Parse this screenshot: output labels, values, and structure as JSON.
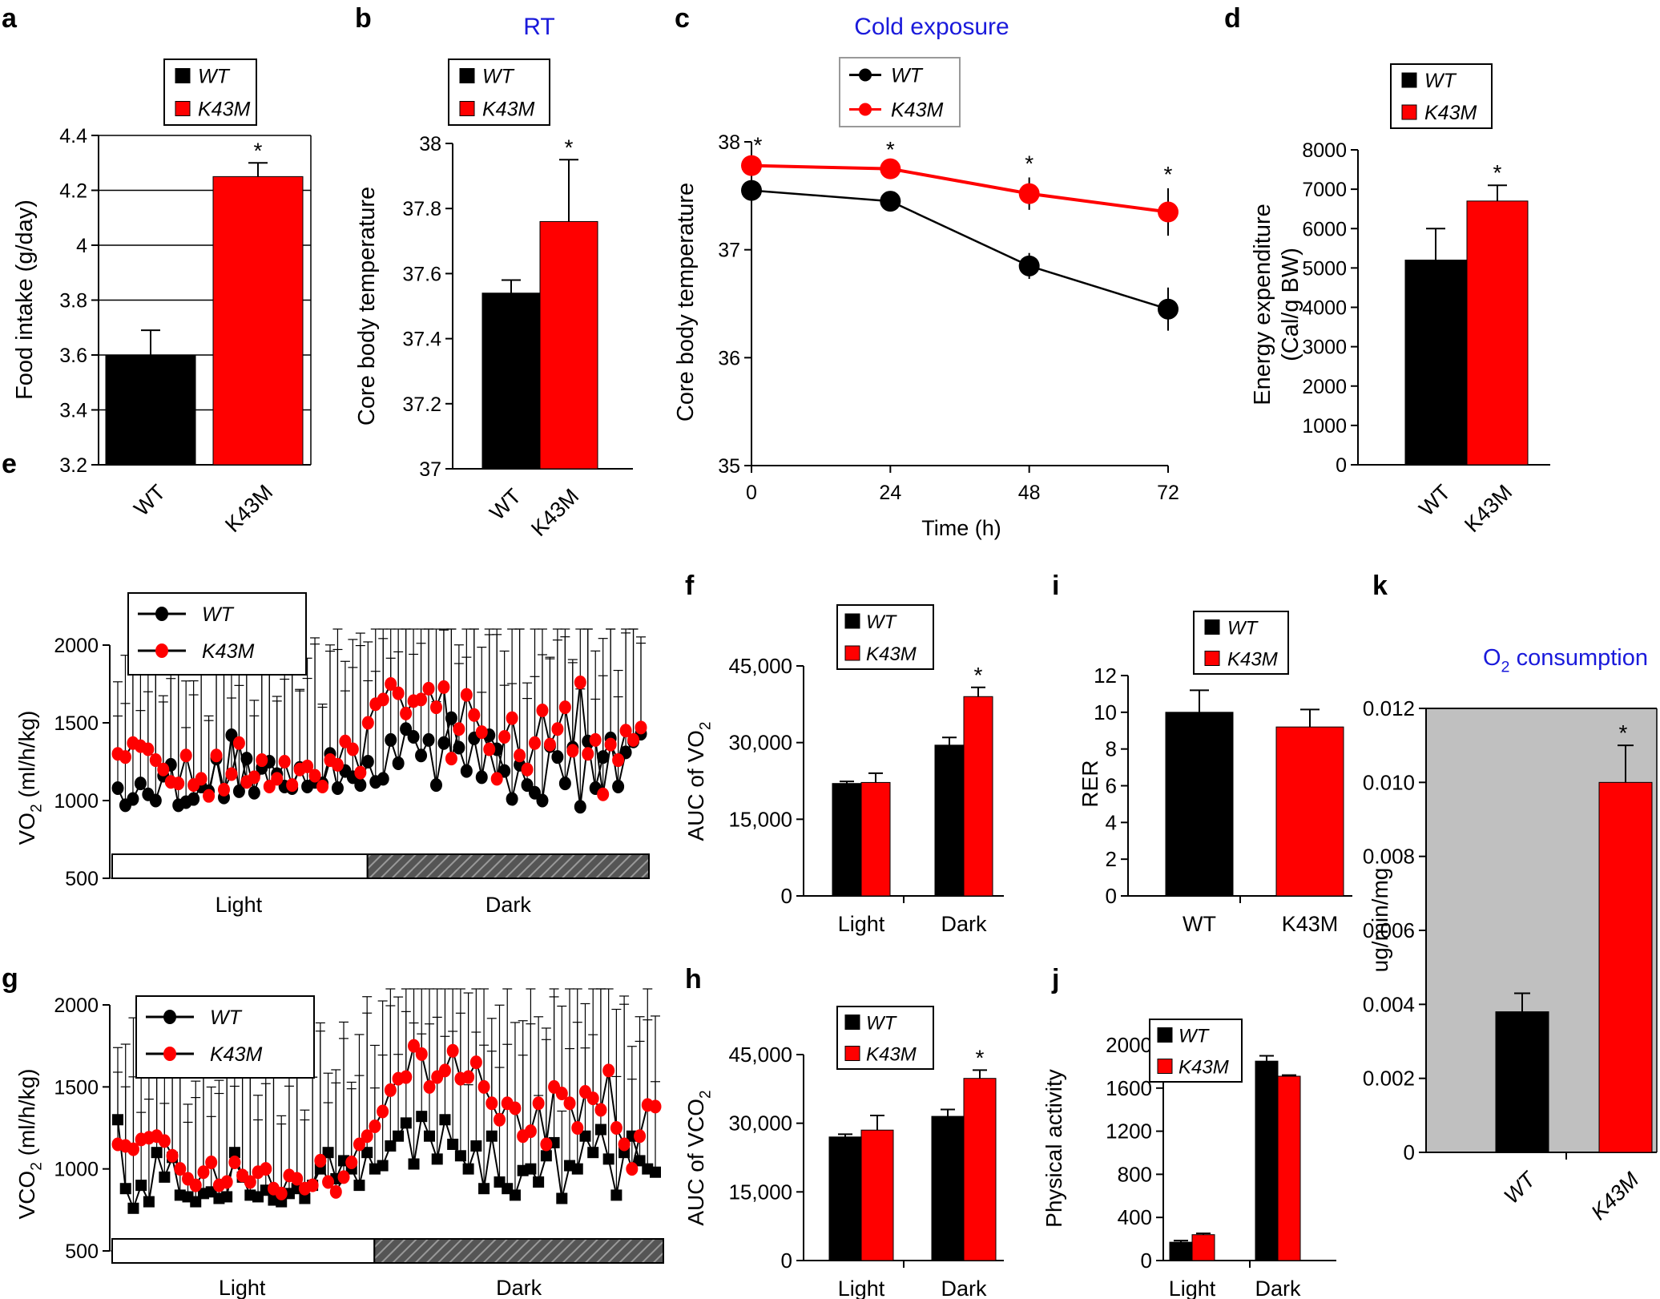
{
  "colors": {
    "wt": "#000000",
    "k43m": "#ff0000",
    "title": "#1a1adb",
    "k_bg": "#c0c0c0"
  },
  "chart_data": [
    {
      "id": "a",
      "type": "bar",
      "panel_label": "a",
      "title": "",
      "categories": [
        "WT",
        "K43M"
      ],
      "values": [
        3.6,
        4.25
      ],
      "errors": [
        0.09,
        0.05
      ],
      "significance": [
        "",
        "*"
      ],
      "ylabel": "Food intake (g/day)",
      "xlabel": "",
      "ylim": [
        3.2,
        4.4
      ],
      "yticks": [
        "3.2",
        "3.4",
        "3.6",
        "3.8",
        "4",
        "4.2",
        "4.4"
      ],
      "legend": [
        "WT",
        "K43M"
      ],
      "legend_position": "top",
      "grid": true
    },
    {
      "id": "b",
      "type": "bar",
      "panel_label": "b",
      "title": "RT",
      "categories": [
        "WT",
        "K43M"
      ],
      "values": [
        37.54,
        37.76
      ],
      "errors": [
        0.04,
        0.19
      ],
      "significance": [
        "",
        "*"
      ],
      "ylabel": "Core body temperature",
      "xlabel": "",
      "ylim": [
        37,
        38
      ],
      "yticks": [
        "37",
        "37.2",
        "37.4",
        "37.6",
        "37.8",
        "38"
      ],
      "legend": [
        "WT",
        "K43M"
      ],
      "legend_position": "top",
      "grid": false
    },
    {
      "id": "c",
      "type": "line",
      "panel_label": "c",
      "title": "Cold exposure",
      "x": [
        0,
        24,
        48,
        72
      ],
      "xticks": [
        "0",
        "24",
        "48",
        "72"
      ],
      "series": [
        {
          "name": "WT",
          "values": [
            37.55,
            37.45,
            36.85,
            36.45
          ],
          "errors": [
            0.18,
            0.08,
            0.12,
            0.2
          ]
        },
        {
          "name": "K43M",
          "values": [
            37.78,
            37.75,
            37.52,
            37.35
          ],
          "errors": [
            0.06,
            0.05,
            0.15,
            0.22
          ]
        }
      ],
      "significance": [
        "*",
        "*",
        "*",
        "*"
      ],
      "ylabel": "Core body temperature",
      "xlabel": "Time (h)",
      "ylim": [
        35,
        38
      ],
      "yticks": [
        "35",
        "36",
        "37",
        "38"
      ],
      "legend_position": "top"
    },
    {
      "id": "d",
      "type": "bar",
      "panel_label": "d",
      "title": "",
      "categories": [
        "WT",
        "K43M"
      ],
      "values": [
        5200,
        6700
      ],
      "errors": [
        800,
        400
      ],
      "significance": [
        "",
        "*"
      ],
      "ylabel": "Energy expenditure",
      "ylabel2": "(Cal/g BW)",
      "xlabel": "",
      "ylim": [
        0,
        8000
      ],
      "yticks": [
        "0",
        "1000",
        "2000",
        "3000",
        "4000",
        "5000",
        "6000",
        "7000",
        "8000"
      ],
      "legend": [
        "WT",
        "K43M"
      ],
      "legend_position": "top",
      "grid": false
    },
    {
      "id": "e",
      "type": "line",
      "panel_label": "e",
      "title": "",
      "ylabel_main": "VO",
      "ylabel_sub": "2",
      "ylabel_rest": " (ml/h/kg)",
      "ylim": [
        500,
        2000
      ],
      "yticks": [
        "500",
        "1000",
        "1500",
        "2000"
      ],
      "series": [
        {
          "name": "WT",
          "marker": "circle",
          "values": [
            1080,
            970,
            1010,
            1110,
            1040,
            1000,
            1160,
            1230,
            970,
            990,
            1010,
            1090,
            1060,
            1270,
            1020,
            1420,
            1060,
            1270,
            1050,
            1210,
            1250,
            1170,
            1090,
            1080,
            1210,
            1090,
            1120,
            1110,
            1300,
            1080,
            1190,
            1150,
            1100,
            1250,
            1120,
            1140,
            1390,
            1240,
            1460,
            1410,
            1290,
            1390,
            1100,
            1370,
            1530,
            1340,
            1190,
            1400,
            1150,
            1420,
            1330,
            1190,
            1010,
            1230,
            1100,
            1050,
            1000,
            1350,
            1280,
            1110,
            1340,
            960,
            1380,
            1080,
            1280,
            1400,
            1090,
            1310,
            1380,
            1430
          ]
        },
        {
          "name": "K43M",
          "marker": "circle",
          "values": [
            1300,
            1280,
            1370,
            1350,
            1330,
            1260,
            1200,
            1120,
            1110,
            1290,
            1100,
            1140,
            1030,
            1290,
            1070,
            1170,
            1370,
            1120,
            1150,
            1260,
            1090,
            1140,
            1250,
            1100,
            1200,
            1220,
            1160,
            1090,
            1260,
            1230,
            1380,
            1330,
            1180,
            1500,
            1620,
            1650,
            1750,
            1690,
            1560,
            1640,
            1650,
            1720,
            1600,
            1730,
            1270,
            1460,
            1680,
            1550,
            1440,
            1330,
            1140,
            1410,
            1530,
            1290,
            1200,
            1370,
            1580,
            1360,
            1460,
            1600,
            1320,
            1760,
            1300,
            1390,
            1040,
            1360,
            1260,
            1450,
            1390,
            1470
          ]
        }
      ],
      "light_dark_labels": [
        "Light",
        "Dark"
      ],
      "legend_position": "top-left"
    },
    {
      "id": "f",
      "type": "bar",
      "panel_label": "f",
      "title": "",
      "categories": [
        "Light",
        "Dark"
      ],
      "series": [
        {
          "name": "WT",
          "values": [
            22000,
            29500
          ],
          "errors": [
            400,
            1500
          ]
        },
        {
          "name": "K43M",
          "values": [
            22200,
            39000
          ],
          "errors": [
            1800,
            1800
          ]
        }
      ],
      "significance": [
        "",
        "*"
      ],
      "ylabel_main": "AUC of VO",
      "ylabel_sub": "2",
      "ylim": [
        0,
        45000
      ],
      "yticks": [
        "0",
        "15,000",
        "30,000",
        "45,000"
      ],
      "legend_position": "top"
    },
    {
      "id": "g",
      "type": "line",
      "panel_label": "g",
      "title": "",
      "ylabel_main": "VCO",
      "ylabel_sub": "2",
      "ylabel_rest": " (ml/h/kg)",
      "ylim": [
        500,
        2000
      ],
      "yticks": [
        "500",
        "1000",
        "1500",
        "2000"
      ],
      "series": [
        {
          "name": "WT",
          "marker": "square",
          "values": [
            1300,
            880,
            760,
            900,
            800,
            1100,
            950,
            1070,
            840,
            830,
            800,
            850,
            860,
            820,
            830,
            1100,
            950,
            840,
            830,
            870,
            810,
            800,
            850,
            880,
            820,
            900,
            1000,
            1100,
            940,
            1050,
            1000,
            900,
            1100,
            1000,
            1020,
            1140,
            1200,
            1280,
            1030,
            1320,
            1200,
            1060,
            1300,
            1150,
            1080,
            1000,
            1140,
            880,
            1200,
            920,
            880,
            840,
            990,
            1000,
            920,
            1080,
            1160,
            820,
            1020,
            1000,
            1200,
            1100,
            1240,
            1060,
            840,
            1100,
            1200,
            1050,
            1000,
            980
          ]
        },
        {
          "name": "K43M",
          "marker": "circle",
          "values": [
            1150,
            1140,
            1120,
            1180,
            1190,
            1200,
            1170,
            1080,
            1000,
            940,
            900,
            980,
            1040,
            900,
            920,
            1040,
            960,
            920,
            980,
            1000,
            880,
            850,
            960,
            940,
            880,
            900,
            1050,
            920,
            860,
            950,
            1040,
            1150,
            1200,
            1260,
            1350,
            1480,
            1550,
            1560,
            1750,
            1700,
            1500,
            1560,
            1600,
            1720,
            1550,
            1560,
            1650,
            1500,
            1400,
            1300,
            1400,
            1370,
            1200,
            1230,
            1400,
            1150,
            1500,
            1460,
            1400,
            1250,
            1470,
            1430,
            1360,
            1600,
            1250,
            1150,
            1000,
            1200,
            1390,
            1380
          ]
        }
      ],
      "light_dark_labels": [
        "Light",
        "Dark"
      ],
      "legend_position": "top-left"
    },
    {
      "id": "h",
      "type": "bar",
      "panel_label": "h",
      "title": "",
      "categories": [
        "Light",
        "Dark"
      ],
      "series": [
        {
          "name": "WT",
          "values": [
            27000,
            31500
          ],
          "errors": [
            600,
            1500
          ]
        },
        {
          "name": "K43M",
          "values": [
            28500,
            39800
          ],
          "errors": [
            3200,
            1800
          ]
        }
      ],
      "significance": [
        "",
        "*"
      ],
      "ylabel_main": "AUC of VCO",
      "ylabel_sub": "2",
      "ylim": [
        0,
        45000
      ],
      "yticks": [
        "0",
        "15,000",
        "30,000",
        "45,000"
      ],
      "legend_position": "top"
    },
    {
      "id": "i",
      "type": "bar",
      "panel_label": "i",
      "title": "",
      "categories": [
        "WT",
        "K43M"
      ],
      "values": [
        10.0,
        9.2
      ],
      "errors": [
        1.2,
        0.95
      ],
      "significance": [
        "",
        ""
      ],
      "ylabel": "RER",
      "ylim": [
        0,
        12
      ],
      "yticks": [
        "0",
        "2",
        "4",
        "6",
        "8",
        "10",
        "12"
      ],
      "legend": [
        "WT",
        "K43M"
      ],
      "legend_position": "top"
    },
    {
      "id": "j",
      "type": "bar",
      "panel_label": "j",
      "title": "",
      "categories": [
        "Light",
        "Dark"
      ],
      "series": [
        {
          "name": "WT",
          "values": [
            170,
            1850
          ],
          "errors": [
            15,
            50
          ]
        },
        {
          "name": "K43M",
          "values": [
            240,
            1710
          ],
          "errors": [
            12,
            10
          ]
        }
      ],
      "ylabel": "Physical activity",
      "ylim": [
        0,
        2000
      ],
      "yticks": [
        "0",
        "400",
        "800",
        "1200",
        "1600",
        "2000"
      ],
      "legend_position": "top"
    },
    {
      "id": "k",
      "type": "bar",
      "panel_label": "k",
      "title_main": "O",
      "title_sub": "2",
      "title_rest": " consumption",
      "categories": [
        "WT",
        "K43M"
      ],
      "values": [
        0.0038,
        0.01
      ],
      "errors": [
        0.0005,
        0.001
      ],
      "significance": [
        "",
        "*"
      ],
      "ylabel": "ug/min/mg",
      "ylim": [
        0,
        0.012
      ],
      "yticks": [
        "0",
        "0.002",
        "0.004",
        "0.006",
        "0.008",
        "0.010",
        "0.012"
      ]
    }
  ]
}
